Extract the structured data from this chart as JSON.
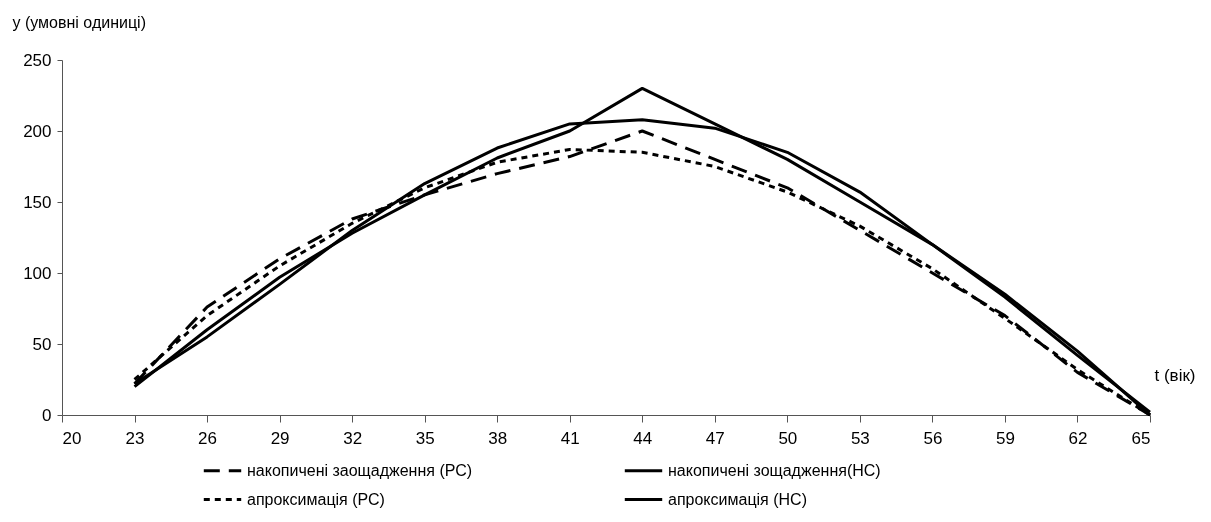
{
  "chart_data": {
    "type": "line",
    "xlabel": "t (вік)",
    "ylabel": "y (умовні одиниці)",
    "x": [
      23,
      26,
      29,
      32,
      35,
      38,
      41,
      44,
      47,
      50,
      53,
      56,
      59,
      62,
      65
    ],
    "series": [
      {
        "name": "накопичені заощадження (РС)",
        "color": "#000000",
        "line_style": "dashed",
        "values": [
          22,
          76,
          110,
          138,
          155,
          170,
          182,
          200,
          180,
          160,
          130,
          100,
          70,
          30,
          0
        ]
      },
      {
        "name": "накопичені зощадження(НС)",
        "color": "#000000",
        "line_style": "solid",
        "values": [
          20,
          60,
          97,
          128,
          155,
          181,
          200,
          230,
          205,
          180,
          150,
          120,
          85,
          45,
          0
        ]
      },
      {
        "name": "апроксимація (РС)",
        "color": "#000000",
        "line_style": "dashed",
        "values": [
          25,
          70,
          105,
          135,
          160,
          178,
          187,
          185,
          175,
          157,
          133,
          103,
          68,
          32,
          0
        ]
      },
      {
        "name": "апроксимація (НС)",
        "color": "#000000",
        "line_style": "solid",
        "values": [
          22,
          55,
          92,
          130,
          163,
          188,
          205,
          208,
          202,
          185,
          157,
          120,
          83,
          42,
          2
        ]
      }
    ],
    "xlim": [
      20,
      65
    ],
    "xticks": [
      20,
      23,
      26,
      29,
      32,
      35,
      38,
      41,
      44,
      47,
      50,
      53,
      56,
      59,
      62,
      65
    ],
    "ylim": [
      0,
      250
    ],
    "yticks": [
      0,
      50,
      100,
      150,
      200,
      250
    ],
    "grid": false,
    "legend": "bottom",
    "marker": "none"
  }
}
